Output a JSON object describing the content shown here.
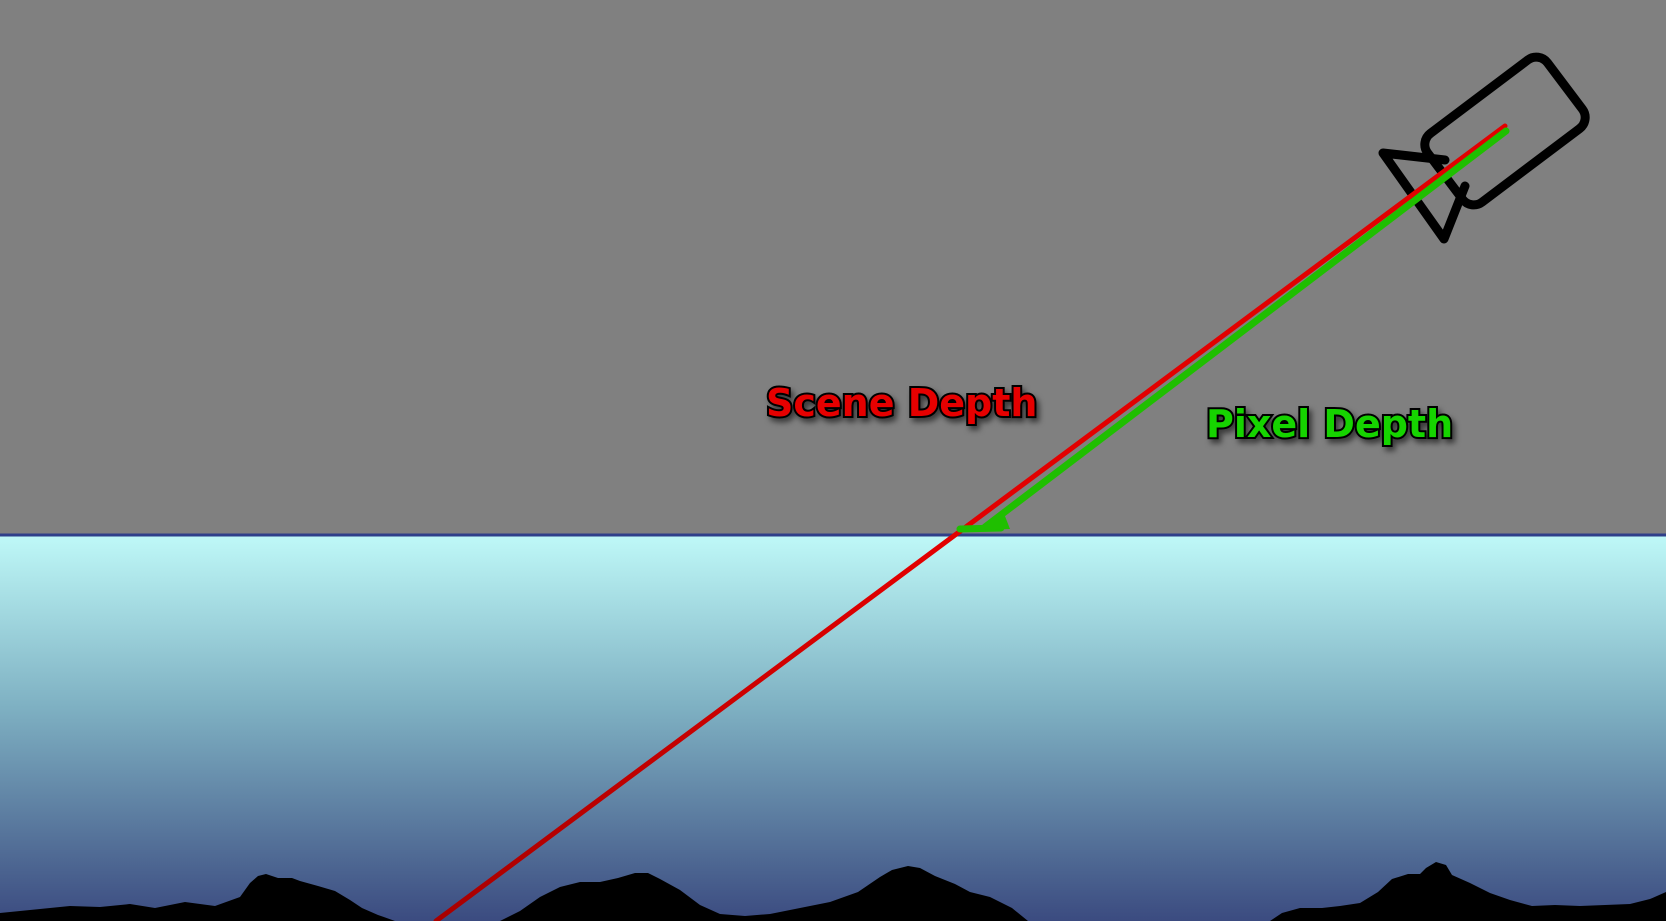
{
  "labels": {
    "scene_depth": "Scene Depth",
    "pixel_depth": "Pixel Depth"
  },
  "colors": {
    "sky": "#808080",
    "water_top": "#bff9f8",
    "water_mid": "#7eb0c2",
    "water_bottom": "#3b4b80",
    "water_surface_line": "#2f3f8a",
    "terrain": "#000000",
    "camera_outline": "#000000",
    "scene_depth_ray": "#e20000",
    "pixel_depth_ray": "#1fbf00",
    "scene_depth_text": "#e60000",
    "pixel_depth_text": "#19d400",
    "text_outline": "#000000"
  },
  "icons": {
    "camera": "video-camera-icon"
  }
}
